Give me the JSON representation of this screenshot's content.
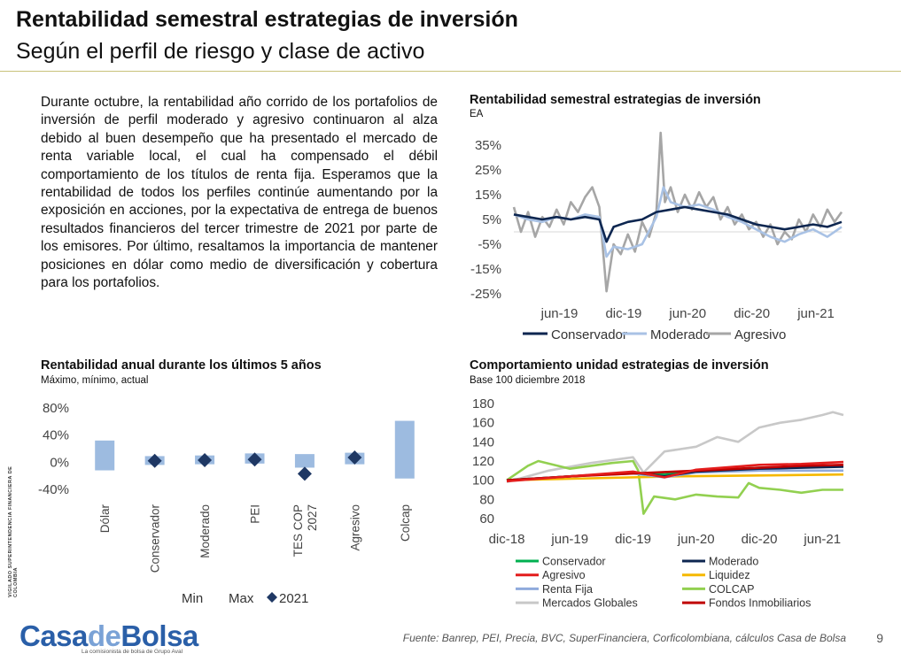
{
  "header": {
    "title": "Rentabilidad semestral estrategias de inversión",
    "subtitle": "Según el perfil de riesgo y clase de activo"
  },
  "body_text": "Durante octubre, la rentabilidad año corrido de los portafolios de inversión de perfil moderado y agresivo continuaron al alza debido al buen desempeño que ha presentado el mercado de renta variable local, el cual ha compensado el débil comportamiento de los títulos de renta fija. Esperamos que la rentabilidad de todos los perfiles continúe aumentando por la exposición en acciones, por la expectativa de entrega de buenos resultados financieros del tercer trimestre de 2021 por parte de los emisores. Por último, resaltamos la importancia de mantener posiciones en dólar como medio de diversificación y cobertura para los portafolios.",
  "footer": {
    "source": "Fuente: Banrep, PEI, Precia, BVC, SuperFinanciera,  Corficolombiana, cálculos Casa de Bolsa",
    "page_number": "9",
    "logo_part1": "Casa",
    "logo_part2": "de",
    "logo_part3": "Bolsa",
    "logo_tagline": "La comisionista de bolsa de Grupo Aval",
    "vigilado_text": "VIGILADO   SUPERINTENDENCIA FINANCIERA DE COLOMBIA"
  },
  "chart_data": [
    {
      "id": "semestral",
      "type": "line",
      "title": "Rentabilidad semestral estrategias de inversión",
      "subtitle": "EA",
      "y_ticks": [
        "35%",
        "25%",
        "15%",
        "5%",
        "-5%",
        "-15%",
        "-25%"
      ],
      "ylim": [
        -25,
        35
      ],
      "x_ticks": [
        "jun-19",
        "dic-19",
        "jun-20",
        "dic-20",
        "jun-21"
      ],
      "legend_position": "bottom",
      "series": [
        {
          "name": "Conservador",
          "color": "#0d2650",
          "values": [
            [
              0,
              7
            ],
            [
              1,
              6
            ],
            [
              2,
              5
            ],
            [
              3,
              6
            ],
            [
              4,
              5
            ],
            [
              5,
              6
            ],
            [
              6,
              5
            ],
            [
              6.5,
              -4
            ],
            [
              7,
              2
            ],
            [
              8,
              4
            ],
            [
              9,
              5
            ],
            [
              10,
              8
            ],
            [
              11,
              9
            ],
            [
              12,
              10
            ],
            [
              13,
              9
            ],
            [
              14,
              8
            ],
            [
              15,
              7
            ],
            [
              16,
              5
            ],
            [
              17,
              3
            ],
            [
              18,
              2
            ],
            [
              19,
              1
            ],
            [
              20,
              2
            ],
            [
              21,
              3
            ],
            [
              22,
              2
            ],
            [
              23,
              4
            ]
          ]
        },
        {
          "name": "Moderado",
          "color": "#a9c2e5",
          "values": [
            [
              0,
              7
            ],
            [
              1,
              5
            ],
            [
              2,
              4
            ],
            [
              3,
              6
            ],
            [
              4,
              5
            ],
            [
              5,
              7
            ],
            [
              6,
              6
            ],
            [
              6.5,
              -10
            ],
            [
              7,
              -6
            ],
            [
              8,
              -7
            ],
            [
              9,
              -5
            ],
            [
              10,
              6
            ],
            [
              10.5,
              18
            ],
            [
              11,
              12
            ],
            [
              12,
              10
            ],
            [
              13,
              11
            ],
            [
              14,
              9
            ],
            [
              15,
              6
            ],
            [
              16,
              4
            ],
            [
              17,
              1
            ],
            [
              18,
              -2
            ],
            [
              19,
              -4
            ],
            [
              20,
              -1
            ],
            [
              21,
              1
            ],
            [
              22,
              -2
            ],
            [
              23,
              2
            ]
          ]
        },
        {
          "name": "Agresivo",
          "color": "#a6a6a6",
          "values": [
            [
              0,
              10
            ],
            [
              0.5,
              0
            ],
            [
              1,
              8
            ],
            [
              1.5,
              -2
            ],
            [
              2,
              6
            ],
            [
              2.5,
              2
            ],
            [
              3,
              9
            ],
            [
              3.5,
              3
            ],
            [
              4,
              12
            ],
            [
              4.5,
              8
            ],
            [
              5,
              14
            ],
            [
              5.5,
              18
            ],
            [
              6,
              10
            ],
            [
              6.5,
              -24
            ],
            [
              7,
              -5
            ],
            [
              7.5,
              -9
            ],
            [
              8,
              -1
            ],
            [
              8.5,
              -8
            ],
            [
              9,
              4
            ],
            [
              9.5,
              -2
            ],
            [
              10,
              8
            ],
            [
              10.3,
              40
            ],
            [
              10.6,
              12
            ],
            [
              11,
              18
            ],
            [
              11.5,
              8
            ],
            [
              12,
              15
            ],
            [
              12.5,
              9
            ],
            [
              13,
              16
            ],
            [
              13.5,
              10
            ],
            [
              14,
              14
            ],
            [
              14.5,
              5
            ],
            [
              15,
              10
            ],
            [
              15.5,
              3
            ],
            [
              16,
              7
            ],
            [
              16.5,
              1
            ],
            [
              17,
              4
            ],
            [
              17.5,
              -2
            ],
            [
              18,
              3
            ],
            [
              18.5,
              -5
            ],
            [
              19,
              0
            ],
            [
              19.5,
              -3
            ],
            [
              20,
              5
            ],
            [
              20.5,
              0
            ],
            [
              21,
              7
            ],
            [
              21.5,
              2
            ],
            [
              22,
              9
            ],
            [
              22.5,
              4
            ],
            [
              23,
              8
            ]
          ]
        }
      ]
    },
    {
      "id": "anual",
      "type": "bar",
      "title": "Rentabilidad anual durante los últimos 5 años",
      "subtitle": "Máximo, mínimo, actual",
      "y_ticks": [
        "80%",
        "40%",
        "0%",
        "-40%"
      ],
      "ylim": [
        -40,
        80
      ],
      "categories": [
        "Dólar",
        "Conservador",
        "Moderado",
        "PEI",
        "TES COP 2027",
        "Agresivo",
        "Colcap"
      ],
      "min": [
        -12,
        -4,
        -3,
        -2,
        -8,
        -3,
        -24
      ],
      "max": [
        32,
        9,
        10,
        13,
        12,
        14,
        61
      ],
      "actual_2021": [
        null,
        2,
        3,
        4,
        -17,
        7,
        null
      ],
      "legend": [
        "Min",
        "Max",
        "2021"
      ],
      "legend_position": "bottom",
      "bar_color": "#9dbbe0",
      "marker_color": "#1f3864"
    },
    {
      "id": "unidad",
      "type": "line",
      "title": "Comportamiento unidad estrategias de inversión",
      "subtitle": "Base 100 diciembre 2018",
      "y_ticks": [
        "180",
        "160",
        "140",
        "120",
        "100",
        "80",
        "60"
      ],
      "ylim": [
        60,
        180
      ],
      "x_ticks": [
        "dic-18",
        "jun-19",
        "dic-19",
        "jun-20",
        "dic-20",
        "jun-21"
      ],
      "legend_position": "bottom",
      "series": [
        {
          "name": "Conservador",
          "color": "#00b050",
          "values": [
            [
              0,
              100
            ],
            [
              6,
              104
            ],
            [
              12,
              108
            ],
            [
              15,
              106
            ],
            [
              18,
              110
            ],
            [
              24,
              113
            ],
            [
              28,
              114
            ],
            [
              32,
              115
            ]
          ]
        },
        {
          "name": "Moderado",
          "color": "#0d2650",
          "values": [
            [
              0,
              100
            ],
            [
              6,
              104
            ],
            [
              12,
              108
            ],
            [
              15,
              104
            ],
            [
              18,
              109
            ],
            [
              24,
              112
            ],
            [
              28,
              113
            ],
            [
              32,
              114
            ]
          ]
        },
        {
          "name": "Agresivo",
          "color": "#e31c1c",
          "values": [
            [
              0,
              99
            ],
            [
              6,
              104
            ],
            [
              12,
              109
            ],
            [
              15,
              103
            ],
            [
              18,
              111
            ],
            [
              24,
              116
            ],
            [
              28,
              117
            ],
            [
              32,
              119
            ]
          ]
        },
        {
          "name": "Liquidez",
          "color": "#f5b800",
          "values": [
            [
              0,
              100
            ],
            [
              8,
              102
            ],
            [
              16,
              104
            ],
            [
              24,
              105
            ],
            [
              32,
              106
            ]
          ]
        },
        {
          "name": "Renta Fija",
          "color": "#8faadc",
          "values": [
            [
              0,
              100
            ],
            [
              6,
              104
            ],
            [
              12,
              107
            ],
            [
              15,
              103
            ],
            [
              18,
              108
            ],
            [
              24,
              110
            ],
            [
              28,
              110
            ],
            [
              32,
              110
            ]
          ]
        },
        {
          "name": "COLCAP",
          "color": "#92d050",
          "values": [
            [
              0,
              100
            ],
            [
              2,
              115
            ],
            [
              3,
              120
            ],
            [
              6,
              112
            ],
            [
              10,
              118
            ],
            [
              12,
              120
            ],
            [
              12.5,
              110
            ],
            [
              13,
              65
            ],
            [
              14,
              83
            ],
            [
              16,
              80
            ],
            [
              18,
              85
            ],
            [
              20,
              83
            ],
            [
              22,
              82
            ],
            [
              23,
              97
            ],
            [
              24,
              92
            ],
            [
              26,
              90
            ],
            [
              28,
              87
            ],
            [
              30,
              90
            ],
            [
              32,
              90
            ]
          ]
        },
        {
          "name": "Mercados Globales",
          "color": "#c8c8c8",
          "values": [
            [
              0,
              98
            ],
            [
              4,
              110
            ],
            [
              8,
              118
            ],
            [
              12,
              124
            ],
            [
              13,
              108
            ],
            [
              15,
              130
            ],
            [
              18,
              135
            ],
            [
              20,
              145
            ],
            [
              22,
              140
            ],
            [
              24,
              155
            ],
            [
              26,
              160
            ],
            [
              28,
              163
            ],
            [
              30,
              168
            ],
            [
              31,
              171
            ],
            [
              32,
              168
            ]
          ]
        },
        {
          "name": "Fondos Inmobiliarios",
          "color": "#c00000",
          "values": [
            [
              0,
              100
            ],
            [
              6,
              104
            ],
            [
              12,
              107
            ],
            [
              16,
              109
            ],
            [
              20,
              111
            ],
            [
              24,
              113
            ],
            [
              28,
              115
            ],
            [
              32,
              116
            ]
          ]
        }
      ]
    }
  ]
}
